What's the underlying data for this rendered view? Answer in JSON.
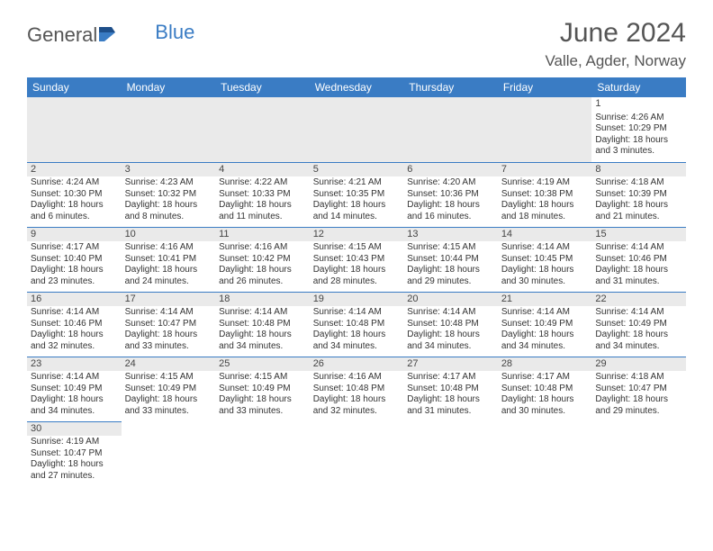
{
  "logo": {
    "text1": "General",
    "text2": "Blue"
  },
  "title": "June 2024",
  "location": "Valle, Agder, Norway",
  "colors": {
    "header_bg": "#3a7cc4",
    "header_text": "#ffffff",
    "cell_border": "#3a7cc4",
    "daynum_bg": "#eaeaea",
    "body_text": "#333333",
    "title_text": "#555555",
    "page_bg": "#ffffff"
  },
  "typography": {
    "title_fontsize": 30,
    "location_fontsize": 17,
    "dayheader_fontsize": 12,
    "cell_fontsize": 10
  },
  "days_of_week": [
    "Sunday",
    "Monday",
    "Tuesday",
    "Wednesday",
    "Thursday",
    "Friday",
    "Saturday"
  ],
  "grid": [
    [
      null,
      null,
      null,
      null,
      null,
      null,
      {
        "n": "1",
        "r": "Sunrise: 4:26 AM",
        "s": "Sunset: 10:29 PM",
        "d": "Daylight: 18 hours and 3 minutes."
      }
    ],
    [
      {
        "n": "2",
        "r": "Sunrise: 4:24 AM",
        "s": "Sunset: 10:30 PM",
        "d": "Daylight: 18 hours and 6 minutes."
      },
      {
        "n": "3",
        "r": "Sunrise: 4:23 AM",
        "s": "Sunset: 10:32 PM",
        "d": "Daylight: 18 hours and 8 minutes."
      },
      {
        "n": "4",
        "r": "Sunrise: 4:22 AM",
        "s": "Sunset: 10:33 PM",
        "d": "Daylight: 18 hours and 11 minutes."
      },
      {
        "n": "5",
        "r": "Sunrise: 4:21 AM",
        "s": "Sunset: 10:35 PM",
        "d": "Daylight: 18 hours and 14 minutes."
      },
      {
        "n": "6",
        "r": "Sunrise: 4:20 AM",
        "s": "Sunset: 10:36 PM",
        "d": "Daylight: 18 hours and 16 minutes."
      },
      {
        "n": "7",
        "r": "Sunrise: 4:19 AM",
        "s": "Sunset: 10:38 PM",
        "d": "Daylight: 18 hours and 18 minutes."
      },
      {
        "n": "8",
        "r": "Sunrise: 4:18 AM",
        "s": "Sunset: 10:39 PM",
        "d": "Daylight: 18 hours and 21 minutes."
      }
    ],
    [
      {
        "n": "9",
        "r": "Sunrise: 4:17 AM",
        "s": "Sunset: 10:40 PM",
        "d": "Daylight: 18 hours and 23 minutes."
      },
      {
        "n": "10",
        "r": "Sunrise: 4:16 AM",
        "s": "Sunset: 10:41 PM",
        "d": "Daylight: 18 hours and 24 minutes."
      },
      {
        "n": "11",
        "r": "Sunrise: 4:16 AM",
        "s": "Sunset: 10:42 PM",
        "d": "Daylight: 18 hours and 26 minutes."
      },
      {
        "n": "12",
        "r": "Sunrise: 4:15 AM",
        "s": "Sunset: 10:43 PM",
        "d": "Daylight: 18 hours and 28 minutes."
      },
      {
        "n": "13",
        "r": "Sunrise: 4:15 AM",
        "s": "Sunset: 10:44 PM",
        "d": "Daylight: 18 hours and 29 minutes."
      },
      {
        "n": "14",
        "r": "Sunrise: 4:14 AM",
        "s": "Sunset: 10:45 PM",
        "d": "Daylight: 18 hours and 30 minutes."
      },
      {
        "n": "15",
        "r": "Sunrise: 4:14 AM",
        "s": "Sunset: 10:46 PM",
        "d": "Daylight: 18 hours and 31 minutes."
      }
    ],
    [
      {
        "n": "16",
        "r": "Sunrise: 4:14 AM",
        "s": "Sunset: 10:46 PM",
        "d": "Daylight: 18 hours and 32 minutes."
      },
      {
        "n": "17",
        "r": "Sunrise: 4:14 AM",
        "s": "Sunset: 10:47 PM",
        "d": "Daylight: 18 hours and 33 minutes."
      },
      {
        "n": "18",
        "r": "Sunrise: 4:14 AM",
        "s": "Sunset: 10:48 PM",
        "d": "Daylight: 18 hours and 34 minutes."
      },
      {
        "n": "19",
        "r": "Sunrise: 4:14 AM",
        "s": "Sunset: 10:48 PM",
        "d": "Daylight: 18 hours and 34 minutes."
      },
      {
        "n": "20",
        "r": "Sunrise: 4:14 AM",
        "s": "Sunset: 10:48 PM",
        "d": "Daylight: 18 hours and 34 minutes."
      },
      {
        "n": "21",
        "r": "Sunrise: 4:14 AM",
        "s": "Sunset: 10:49 PM",
        "d": "Daylight: 18 hours and 34 minutes."
      },
      {
        "n": "22",
        "r": "Sunrise: 4:14 AM",
        "s": "Sunset: 10:49 PM",
        "d": "Daylight: 18 hours and 34 minutes."
      }
    ],
    [
      {
        "n": "23",
        "r": "Sunrise: 4:14 AM",
        "s": "Sunset: 10:49 PM",
        "d": "Daylight: 18 hours and 34 minutes."
      },
      {
        "n": "24",
        "r": "Sunrise: 4:15 AM",
        "s": "Sunset: 10:49 PM",
        "d": "Daylight: 18 hours and 33 minutes."
      },
      {
        "n": "25",
        "r": "Sunrise: 4:15 AM",
        "s": "Sunset: 10:49 PM",
        "d": "Daylight: 18 hours and 33 minutes."
      },
      {
        "n": "26",
        "r": "Sunrise: 4:16 AM",
        "s": "Sunset: 10:48 PM",
        "d": "Daylight: 18 hours and 32 minutes."
      },
      {
        "n": "27",
        "r": "Sunrise: 4:17 AM",
        "s": "Sunset: 10:48 PM",
        "d": "Daylight: 18 hours and 31 minutes."
      },
      {
        "n": "28",
        "r": "Sunrise: 4:17 AM",
        "s": "Sunset: 10:48 PM",
        "d": "Daylight: 18 hours and 30 minutes."
      },
      {
        "n": "29",
        "r": "Sunrise: 4:18 AM",
        "s": "Sunset: 10:47 PM",
        "d": "Daylight: 18 hours and 29 minutes."
      }
    ],
    [
      {
        "n": "30",
        "r": "Sunrise: 4:19 AM",
        "s": "Sunset: 10:47 PM",
        "d": "Daylight: 18 hours and 27 minutes."
      },
      null,
      null,
      null,
      null,
      null,
      null
    ]
  ]
}
